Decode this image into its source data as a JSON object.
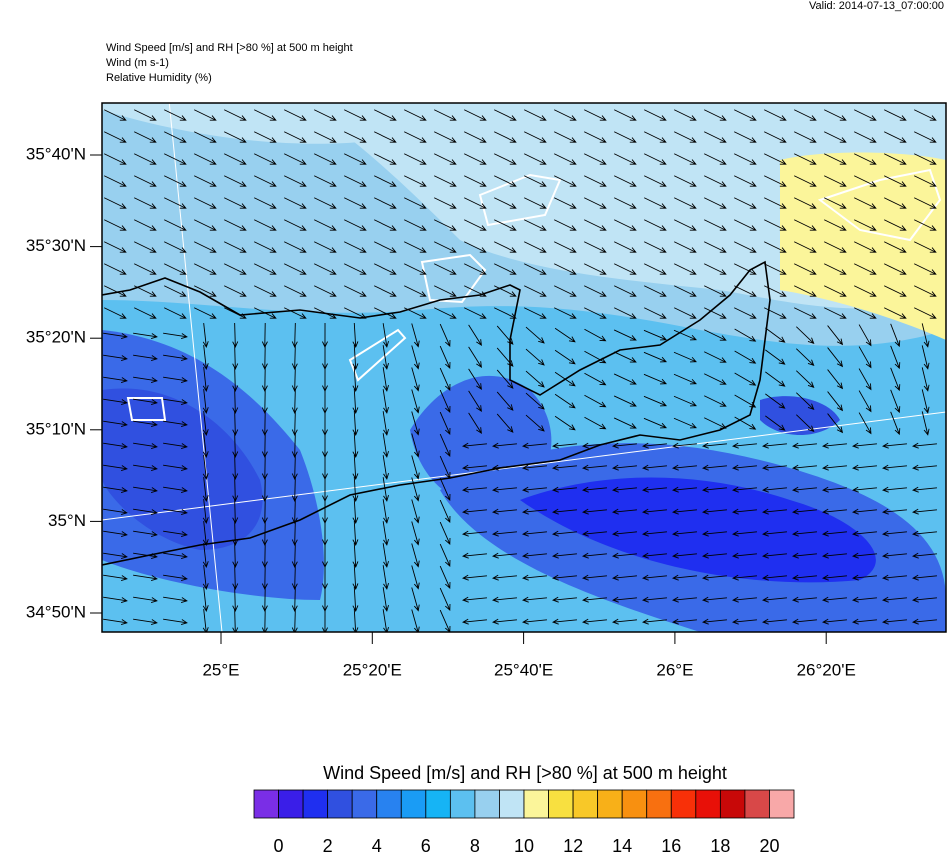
{
  "header": {
    "valid": "Valid: 2014-07-13_07:00:00",
    "lines": [
      "Wind Speed [m/s] and RH [>80 %] at 500 m height",
      "Wind   (m s-1)",
      "Relative Humidity   (%)"
    ]
  },
  "map": {
    "lat_labels": [
      "35°40'N",
      "35°30'N",
      "35°20'N",
      "35°10'N",
      "35°N",
      "34°50'N"
    ],
    "lon_labels": [
      "25°E",
      "25°20'E",
      "25°40'E",
      "26°E",
      "26°20'E"
    ]
  },
  "colorbar": {
    "title": "Wind Speed [m/s] and RH [>80 %] at 500 m height",
    "labels": [
      0,
      2,
      4,
      6,
      8,
      10,
      12,
      14,
      16,
      18,
      20
    ],
    "colors": [
      "#7a2ee6",
      "#3a1ee8",
      "#1f2ff0",
      "#3050e0",
      "#3a6ae8",
      "#2882f0",
      "#1a9cf5",
      "#16b4f5",
      "#5cc0f0",
      "#98d0ef",
      "#c0e4f5",
      "#fbf59a",
      "#f8e040",
      "#f8c828",
      "#f8b018",
      "#f89010",
      "#f87010",
      "#f83008",
      "#e81008",
      "#c80808",
      "#d84848",
      "#f8a8a8"
    ]
  }
}
